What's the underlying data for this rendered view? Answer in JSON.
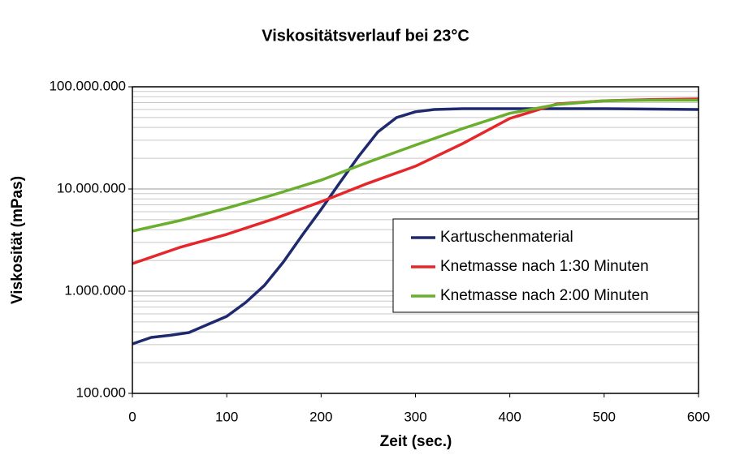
{
  "chart_data": {
    "type": "line",
    "title": "Viskositätsverlauf bei 23°C",
    "x_label": "Zeit (sec.)",
    "y_label": "Viskosität (mPas)",
    "log_y": true,
    "grid": true,
    "legend": "right",
    "xlim": [
      0,
      600
    ],
    "xticks": [
      0,
      100,
      200,
      300,
      400,
      500,
      600
    ],
    "ylim": [
      100000,
      100000000
    ],
    "yticks": [
      {
        "value": 100000,
        "label": "100.000"
      },
      {
        "value": 1000000,
        "label": "1.000.000"
      },
      {
        "value": 10000000,
        "label": "10.000.000"
      },
      {
        "value": 100000000,
        "label": "100.000.000"
      }
    ],
    "minor_yticks": [
      200000,
      300000,
      400000,
      500000,
      600000,
      700000,
      800000,
      900000,
      2000000,
      3000000,
      4000000,
      5000000,
      6000000,
      7000000,
      8000000,
      9000000,
      20000000,
      30000000,
      40000000,
      50000000,
      60000000,
      70000000,
      80000000,
      90000000
    ],
    "series": [
      {
        "name": "Kartuschenmaterial",
        "color": "#1f2a6e",
        "x": [
          0,
          20,
          40,
          60,
          80,
          100,
          120,
          140,
          160,
          180,
          200,
          220,
          240,
          260,
          280,
          300,
          320,
          350,
          400,
          500,
          600
        ],
        "values": [
          305000,
          353000,
          370000,
          394000,
          473000,
          568000,
          774000,
          1140000,
          1930000,
          3530000,
          6300000,
          11600000,
          21000000,
          36000000,
          50000000,
          57000000,
          60000000,
          61000000,
          61000000,
          61000000,
          60000000
        ]
      },
      {
        "name": "Knetmasse nach 1:30 Minuten",
        "color": "#e5262a",
        "x": [
          0,
          50,
          100,
          150,
          200,
          250,
          300,
          350,
          400,
          450,
          500,
          550,
          600
        ],
        "values": [
          1860000,
          2680000,
          3600000,
          5100000,
          7500000,
          11400000,
          16700000,
          27800000,
          49000000,
          68000000,
          73000000,
          75000000,
          76000000
        ]
      },
      {
        "name": "Knetmasse nach 2:00 Minuten",
        "color": "#6aae2e",
        "x": [
          0,
          50,
          100,
          150,
          200,
          250,
          300,
          350,
          400,
          450,
          500,
          550,
          600
        ],
        "values": [
          3870000,
          4900000,
          6500000,
          8800000,
          12200000,
          18300000,
          26900000,
          39000000,
          55000000,
          67000000,
          73000000,
          74000000,
          74000000
        ]
      }
    ]
  }
}
